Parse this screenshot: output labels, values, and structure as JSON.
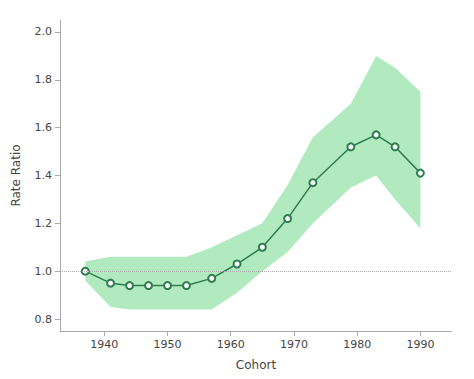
{
  "chart_data": {
    "type": "line",
    "xlabel": "Cohort",
    "ylabel": "Rate Ratio",
    "x": [
      1937,
      1941,
      1944,
      1947,
      1950,
      1953,
      1957,
      1961,
      1965,
      1969,
      1973,
      1979,
      1983,
      1986,
      1990
    ],
    "series": [
      {
        "name": "Rate Ratio",
        "color": "#2e7d4f",
        "marker": "emptyCircle",
        "line_style": "solid",
        "values": [
          1.0,
          0.95,
          0.94,
          0.94,
          0.94,
          0.94,
          0.97,
          1.03,
          1.1,
          1.22,
          1.37,
          1.52,
          1.57,
          1.52,
          1.41
        ],
        "ci_lower": [
          0.96,
          0.85,
          0.84,
          0.84,
          0.84,
          0.84,
          0.84,
          0.91,
          1.0,
          1.08,
          1.2,
          1.35,
          1.4,
          1.3,
          1.18
        ],
        "ci_upper": [
          1.04,
          1.06,
          1.06,
          1.06,
          1.06,
          1.06,
          1.1,
          1.15,
          1.2,
          1.36,
          1.56,
          1.7,
          1.9,
          1.85,
          1.75
        ],
        "ci_color": "#b2eac0"
      }
    ],
    "reference_line": {
      "y": 1.0,
      "color": "#aaaaaa",
      "line_style": "dotted"
    },
    "xlim": [
      1933,
      1995
    ],
    "ylim": [
      0.75,
      2.05
    ],
    "xticks": [
      1940,
      1950,
      1960,
      1970,
      1980,
      1990
    ],
    "yticks": [
      0.8,
      {
        "value": 1.0,
        "label": "1.0"
      },
      1.2,
      1.4,
      1.6,
      1.8,
      {
        "value": 2.0,
        "label": "2.0"
      }
    ],
    "grid": false
  }
}
